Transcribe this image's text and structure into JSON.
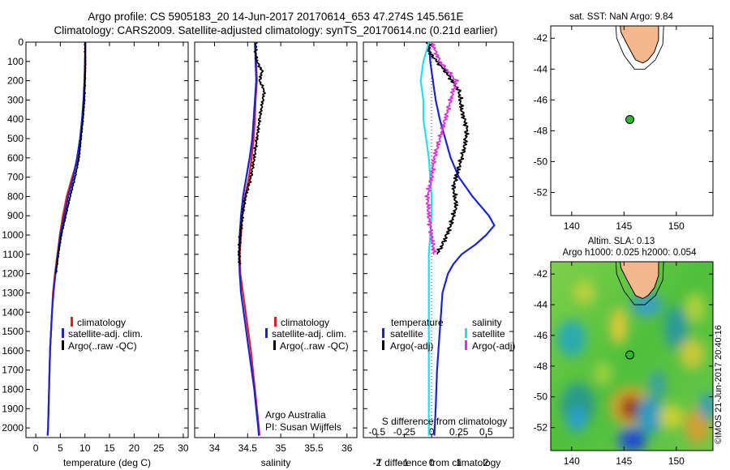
{
  "header": {
    "title_line1": "Argo profile: CS 5905183_20 14-Jun-2017 20170614_653 47.274S 145.561E",
    "title_line2": "Climatology: CARS2009. Satellite-adjusted climatology: synTS_20170614.nc (0.21d earlier)"
  },
  "colors": {
    "climatology": "#e02020",
    "satellite": "#1a22d8",
    "argo": "#000000",
    "sat_t": "#1a22d8",
    "sat_s": "#22e0e8",
    "argo_s": "#e030d8",
    "land": "#f5b88c",
    "float": "#2db82d"
  },
  "credits": {
    "watermark": "©IMOS 21-Jun-2017 20:40:16",
    "group": "Argo Australia",
    "pi": "PI: Susan Wijffels"
  },
  "chart_data": [
    {
      "type": "line",
      "xlabel": "temperature (deg C)",
      "ylabel": "",
      "xlim": [
        -2,
        31
      ],
      "ylim": [
        2050,
        0
      ],
      "xticks": [
        0,
        5,
        10,
        15,
        20,
        25,
        30
      ],
      "yticks": [
        0,
        100,
        200,
        300,
        400,
        500,
        600,
        700,
        800,
        900,
        1000,
        1100,
        1200,
        1300,
        1400,
        1500,
        1600,
        1700,
        1800,
        1900,
        2000
      ],
      "legend": [
        "climatology",
        "satellite-adj. clim.",
        "Argo(..raw -QC)"
      ],
      "series": [
        {
          "name": "climatology",
          "color": "#e02020",
          "points": [
            [
              10.1,
              0
            ],
            [
              10.1,
              100
            ],
            [
              10.0,
              200
            ],
            [
              9.8,
              300
            ],
            [
              9.5,
              400
            ],
            [
              9.1,
              500
            ],
            [
              8.6,
              600
            ],
            [
              7.4,
              700
            ],
            [
              6.3,
              800
            ],
            [
              5.5,
              900
            ],
            [
              4.9,
              1000
            ],
            [
              4.4,
              1100
            ],
            [
              3.9,
              1200
            ],
            [
              3.5,
              1300
            ],
            [
              3.3,
              1400
            ],
            [
              3.1,
              1500
            ],
            [
              2.9,
              1600
            ],
            [
              2.8,
              1700
            ],
            [
              2.7,
              1800
            ],
            [
              2.6,
              1900
            ],
            [
              2.5,
              2000
            ],
            [
              2.4,
              2040
            ]
          ]
        },
        {
          "name": "satellite-adj. clim.",
          "color": "#1a22d8",
          "points": [
            [
              10.1,
              0
            ],
            [
              10.0,
              100
            ],
            [
              9.9,
              200
            ],
            [
              9.7,
              300
            ],
            [
              9.4,
              400
            ],
            [
              9.0,
              500
            ],
            [
              8.4,
              600
            ],
            [
              7.6,
              700
            ],
            [
              6.6,
              800
            ],
            [
              5.8,
              900
            ],
            [
              5.0,
              1000
            ],
            [
              4.5,
              1100
            ],
            [
              4.0,
              1200
            ],
            [
              3.6,
              1300
            ],
            [
              3.3,
              1400
            ],
            [
              3.1,
              1500
            ],
            [
              2.9,
              1600
            ],
            [
              2.8,
              1700
            ],
            [
              2.7,
              1800
            ],
            [
              2.6,
              1900
            ],
            [
              2.5,
              2000
            ],
            [
              2.4,
              2040
            ]
          ]
        },
        {
          "name": "Argo(..raw -QC)",
          "color": "#000000",
          "points": [
            [
              10.0,
              0
            ],
            [
              10.0,
              50
            ],
            [
              10.1,
              100
            ],
            [
              10.0,
              200
            ],
            [
              9.9,
              300
            ],
            [
              9.6,
              400
            ],
            [
              9.2,
              500
            ],
            [
              8.8,
              600
            ],
            [
              8.0,
              700
            ],
            [
              7.0,
              800
            ],
            [
              6.1,
              900
            ],
            [
              5.2,
              1000
            ],
            [
              4.6,
              1100
            ],
            [
              4.1,
              1200
            ]
          ]
        }
      ]
    },
    {
      "type": "line",
      "xlabel": "salinity",
      "ylabel": "",
      "xlim": [
        33.7,
        36.15
      ],
      "ylim": [
        2050,
        0
      ],
      "xticks": [
        34,
        34.5,
        35,
        35.5,
        36
      ],
      "legend": [
        "climatology",
        "satellite-adj. clim.",
        "Argo(..raw -QC)"
      ],
      "series": [
        {
          "name": "climatology",
          "color": "#e02020",
          "points": [
            [
              34.61,
              0
            ],
            [
              34.63,
              100
            ],
            [
              34.64,
              200
            ],
            [
              34.62,
              300
            ],
            [
              34.61,
              400
            ],
            [
              34.59,
              500
            ],
            [
              34.56,
              600
            ],
            [
              34.52,
              700
            ],
            [
              34.46,
              800
            ],
            [
              34.42,
              900
            ],
            [
              34.4,
              1000
            ],
            [
              34.38,
              1100
            ],
            [
              34.39,
              1200
            ],
            [
              34.43,
              1300
            ],
            [
              34.47,
              1400
            ],
            [
              34.51,
              1500
            ],
            [
              34.55,
              1600
            ],
            [
              34.58,
              1700
            ],
            [
              34.61,
              1800
            ],
            [
              34.64,
              1900
            ],
            [
              34.67,
              2000
            ],
            [
              34.68,
              2040
            ]
          ]
        },
        {
          "name": "satellite-adj. clim.",
          "color": "#1a22d8",
          "points": [
            [
              34.61,
              0
            ],
            [
              34.62,
              100
            ],
            [
              34.63,
              200
            ],
            [
              34.61,
              300
            ],
            [
              34.59,
              400
            ],
            [
              34.57,
              500
            ],
            [
              34.53,
              600
            ],
            [
              34.48,
              700
            ],
            [
              34.43,
              800
            ],
            [
              34.4,
              900
            ],
            [
              34.38,
              1000
            ],
            [
              34.37,
              1100
            ],
            [
              34.38,
              1200
            ],
            [
              34.4,
              1300
            ],
            [
              34.44,
              1400
            ],
            [
              34.48,
              1500
            ],
            [
              34.52,
              1600
            ],
            [
              34.56,
              1700
            ],
            [
              34.6,
              1800
            ],
            [
              34.63,
              1900
            ],
            [
              34.66,
              2000
            ],
            [
              34.67,
              2040
            ]
          ]
        },
        {
          "name": "Argo(..raw -QC)",
          "color": "#000000",
          "points": [
            [
              34.63,
              0
            ],
            [
              34.62,
              50
            ],
            [
              34.64,
              100
            ],
            [
              34.72,
              150
            ],
            [
              34.68,
              200
            ],
            [
              34.75,
              250
            ],
            [
              34.73,
              300
            ],
            [
              34.68,
              400
            ],
            [
              34.64,
              500
            ],
            [
              34.6,
              600
            ],
            [
              34.55,
              700
            ],
            [
              34.47,
              800
            ],
            [
              34.42,
              900
            ],
            [
              34.39,
              1000
            ],
            [
              34.37,
              1100
            ],
            [
              34.38,
              1150
            ]
          ]
        }
      ]
    },
    {
      "type": "line",
      "xlabel": "T difference from climatology",
      "xlabel_top": "S difference from climatology",
      "xlim": [
        -2.5,
        3.0
      ],
      "ylim": [
        2050,
        0
      ],
      "xticks": [
        -2,
        -1,
        0,
        1,
        2
      ],
      "xticks_top_labels": [
        "-0.5",
        "-0.25",
        "0",
        "0.25",
        "0.5"
      ],
      "xticks_top_pos": [
        -2,
        -1,
        0,
        1,
        2
      ],
      "legend_temperature": [
        "temperature",
        "satellite",
        "Argo(-adj)"
      ],
      "legend_salinity": [
        "salinity",
        "satellite",
        "Argo(-adj)"
      ],
      "series": [
        {
          "name": "temperature satellite",
          "color": "#1a22d8",
          "points": [
            [
              -0.1,
              0
            ],
            [
              -0.05,
              100
            ],
            [
              0.05,
              200
            ],
            [
              0.15,
              300
            ],
            [
              0.3,
              400
            ],
            [
              0.5,
              500
            ],
            [
              0.7,
              600
            ],
            [
              1.0,
              700
            ],
            [
              1.5,
              800
            ],
            [
              2.1,
              900
            ],
            [
              2.3,
              950
            ],
            [
              2.0,
              1000
            ],
            [
              1.6,
              1050
            ],
            [
              1.1,
              1100
            ],
            [
              0.8,
              1150
            ],
            [
              0.6,
              1200
            ],
            [
              0.4,
              1300
            ],
            [
              0.3,
              1500
            ],
            [
              0.2,
              1700
            ],
            [
              0.15,
              1900
            ],
            [
              0.1,
              2040
            ]
          ]
        },
        {
          "name": "temperature Argo(-adj)",
          "color": "#000000",
          "points": [
            [
              -0.1,
              0
            ],
            [
              -0.1,
              50
            ],
            [
              0.2,
              100
            ],
            [
              0.5,
              150
            ],
            [
              1.0,
              250
            ],
            [
              1.1,
              350
            ],
            [
              1.3,
              450
            ],
            [
              1.2,
              550
            ],
            [
              1.0,
              650
            ],
            [
              0.8,
              750
            ],
            [
              0.9,
              850
            ],
            [
              0.7,
              950
            ],
            [
              0.4,
              1050
            ],
            [
              0.2,
              1100
            ]
          ]
        },
        {
          "name": "salinity satellite",
          "color": "#22e0e8",
          "points": [
            [
              -0.1,
              0
            ],
            [
              -0.3,
              100
            ],
            [
              -0.4,
              200
            ],
            [
              -0.3,
              300
            ],
            [
              -0.3,
              400
            ],
            [
              -0.2,
              500
            ],
            [
              -0.1,
              600
            ],
            [
              -0.05,
              700
            ],
            [
              0,
              800
            ],
            [
              0,
              900
            ],
            [
              -0.05,
              1000
            ],
            [
              -0.1,
              1100
            ],
            [
              -0.1,
              1200
            ],
            [
              -0.1,
              1400
            ],
            [
              -0.1,
              1600
            ],
            [
              -0.1,
              1800
            ],
            [
              -0.1,
              2040
            ]
          ]
        },
        {
          "name": "salinity Argo(-adj)",
          "color": "#e030d8",
          "points": [
            [
              0.0,
              0
            ],
            [
              0.3,
              100
            ],
            [
              0.9,
              200
            ],
            [
              0.7,
              300
            ],
            [
              0.5,
              400
            ],
            [
              0.3,
              500
            ],
            [
              0.1,
              600
            ],
            [
              0.0,
              700
            ],
            [
              -0.15,
              800
            ],
            [
              -0.1,
              900
            ],
            [
              0.0,
              1000
            ],
            [
              0.1,
              1100
            ]
          ]
        }
      ]
    },
    {
      "type": "map",
      "title": "sat. SST: NaN Argo: 9.84",
      "xlim": [
        138,
        153.5
      ],
      "ylim": [
        -53.5,
        -41.2
      ],
      "xticks": [
        140,
        145,
        150
      ],
      "yticks": [
        -42,
        -44,
        -46,
        -48,
        -50,
        -52
      ],
      "marker": {
        "lon": 145.56,
        "lat": -47.27
      }
    },
    {
      "type": "heatmap",
      "title_line1": "Altim. SLA: 0.13",
      "title_line2": "Argo h1000: 0.025 h2000: 0.054",
      "xlim": [
        138,
        153.5
      ],
      "ylim": [
        -53.5,
        -41.2
      ],
      "xticks": [
        140,
        145,
        150
      ],
      "yticks": [
        -42,
        -44,
        -46,
        -48,
        -50,
        -52
      ],
      "marker": {
        "lon": 145.56,
        "lat": -47.27
      }
    }
  ]
}
